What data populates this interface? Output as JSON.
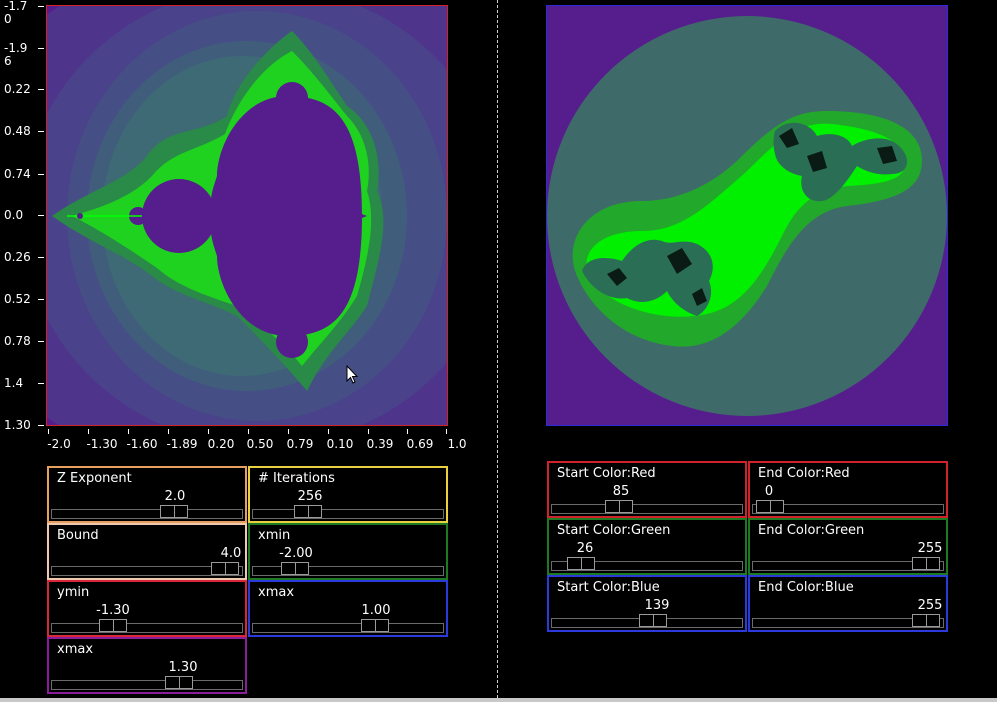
{
  "mandelbrot_plot": {
    "y_ticks": [
      "-1.7\n0",
      "-1.9\n6",
      "0.22",
      "0.48",
      "0.74",
      "0.0",
      "0.26",
      "0.52",
      "0.78",
      "1.4",
      "1.30"
    ],
    "x_ticks": [
      "-2.0",
      "-1.30",
      "-1.60",
      "-1.89",
      "0.20",
      "0.50",
      "0.79",
      "0.10",
      "0.39",
      "0.69",
      "1.0"
    ]
  },
  "left_controls": [
    {
      "label": "Z Exponent",
      "value": "2.0",
      "fraction": 0.64
    },
    {
      "label": "# Iterations",
      "value": "256",
      "fraction": 0.29
    },
    {
      "label": "Bound",
      "value": "4.0",
      "fraction": 0.91
    },
    {
      "label": "xmin",
      "value": "-2.00",
      "fraction": 0.22
    },
    {
      "label": "ymin",
      "value": "-1.30",
      "fraction": 0.32
    },
    {
      "label": "xmax",
      "value": "1.00",
      "fraction": 0.64
    },
    {
      "label": "xmax",
      "value": "1.30",
      "fraction": 0.67
    }
  ],
  "right_controls": [
    {
      "label": "Start Color:Red",
      "value": "85",
      "fraction": 0.35
    },
    {
      "label": "End Color:Red",
      "value": "0",
      "fraction": 0.09
    },
    {
      "label": "Start Color:Green",
      "value": "26",
      "fraction": 0.15
    },
    {
      "label": "End Color:Green",
      "value": "255",
      "fraction": 0.91
    },
    {
      "label": "Start Color:Blue",
      "value": "139",
      "fraction": 0.53
    },
    {
      "label": "End Color:Blue",
      "value": "255",
      "fraction": 0.91
    }
  ],
  "colors": {
    "fill_purple": "#561d8d",
    "ring_outer": "#4e3a8a",
    "ring_mid": "#45507f",
    "ring_inner": "#3e6677",
    "green_bright": "#00ff00",
    "green_mid": "#24b229",
    "teal_bg": "#3a6a68"
  }
}
